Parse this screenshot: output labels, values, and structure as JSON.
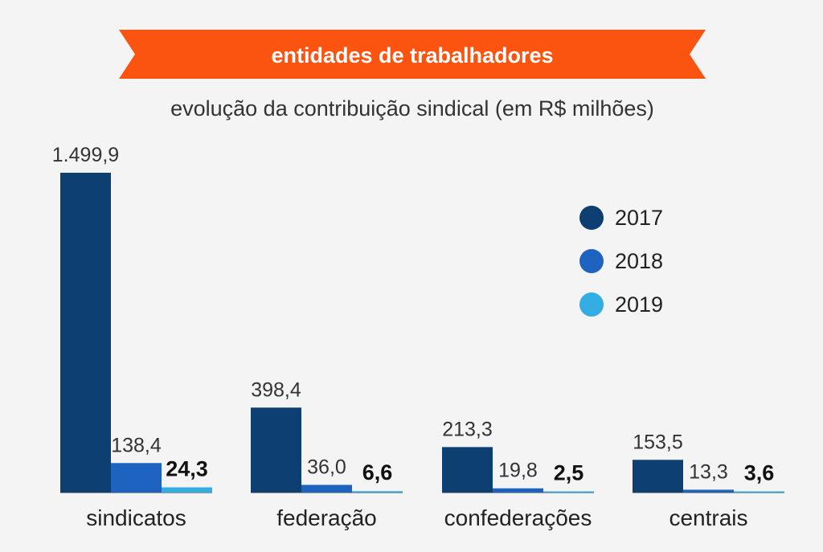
{
  "chart_data": {
    "type": "bar",
    "title": "entidades de trabalhadores",
    "subtitle": "evolução da contribuição sindical (em R$ milhões)",
    "categories": [
      "sindicatos",
      "federação",
      "confederações",
      "centrais"
    ],
    "series": [
      {
        "name": "2017",
        "values": [
          1499.9,
          398.4,
          213.3,
          153.5
        ],
        "labels": [
          "1.499,9",
          "398,4",
          "213,3",
          "153,5"
        ],
        "color": "#0d3f73",
        "bold": false
      },
      {
        "name": "2018",
        "values": [
          138.4,
          36.0,
          19.8,
          13.3
        ],
        "labels": [
          "138,4",
          "36,0",
          "19,8",
          "13,3"
        ],
        "color": "#1f63c0",
        "bold": false
      },
      {
        "name": "2019",
        "values": [
          24.3,
          6.6,
          2.5,
          3.6
        ],
        "labels": [
          "24,3",
          "6,6",
          "2,5",
          "3,6"
        ],
        "color": "#33aee3",
        "bold": true
      }
    ],
    "legend_position": "right",
    "ylim": [
      0,
      1499.9
    ],
    "grid": false
  },
  "colors": {
    "banner": "#fb5310",
    "background": "#f4f4f4",
    "baseline": "#999999"
  }
}
